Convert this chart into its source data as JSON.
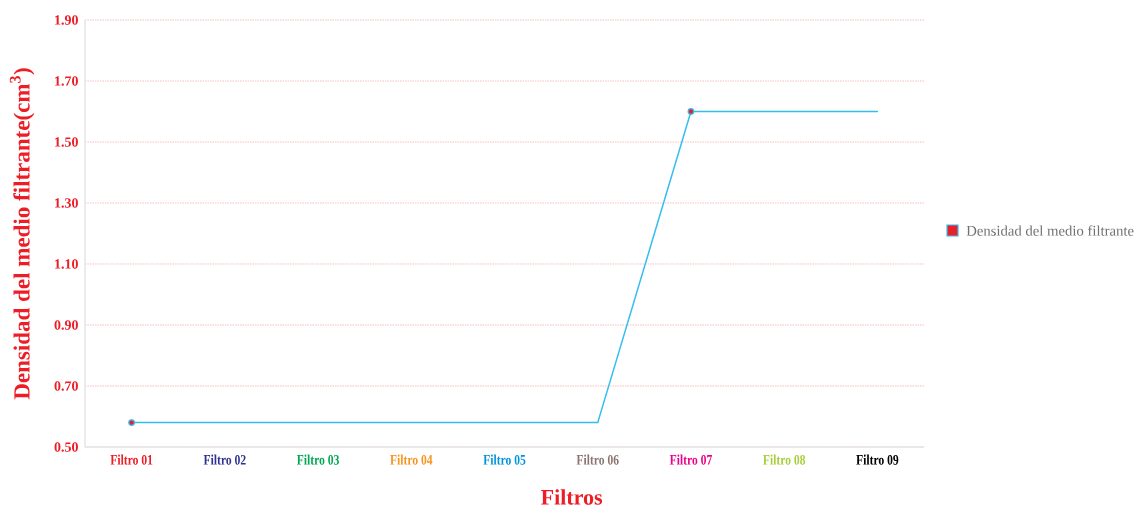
{
  "chart_data": {
    "type": "line",
    "xlabel": "Filtros",
    "ylabel": "Densidad del medio filtrante(cm$^{3}$)",
    "categories": [
      "Filtro 01",
      "Filtro 02",
      "Filtro 03",
      "Filtro 04",
      "Filtro 05",
      "Filtro 06",
      "Filtro 07",
      "Filtro 08",
      "Filtro 09"
    ],
    "series": [
      {
        "name": "Densidad del medio filtrante",
        "color": "#35bdf0",
        "values": [
          0.58,
          0.58,
          0.58,
          0.58,
          0.58,
          0.58,
          1.6,
          1.6,
          1.6
        ]
      },
      {
        "type": "scatter",
        "color": "#e8202a",
        "marker": "circle",
        "x": [
          "Filtro 01",
          "Filtro 07"
        ],
        "values": [
          0.58,
          1.6
        ]
      }
    ],
    "ylim": [
      0.5,
      1.9
    ],
    "yticks": [
      {
        "value": 0.5,
        "label": "0.50"
      },
      {
        "value": 0.7,
        "label": "0.70"
      },
      {
        "value": 0.9,
        "label": "0.90"
      },
      {
        "value": 1.1,
        "label": "1.10"
      },
      {
        "value": 1.3,
        "label": "1.30"
      },
      {
        "value": 1.5,
        "label": "1.50"
      },
      {
        "value": 1.7,
        "label": "1.70"
      },
      {
        "value": 1.9,
        "label": "1.90"
      }
    ],
    "grid": "y",
    "legend": "right"
  }
}
